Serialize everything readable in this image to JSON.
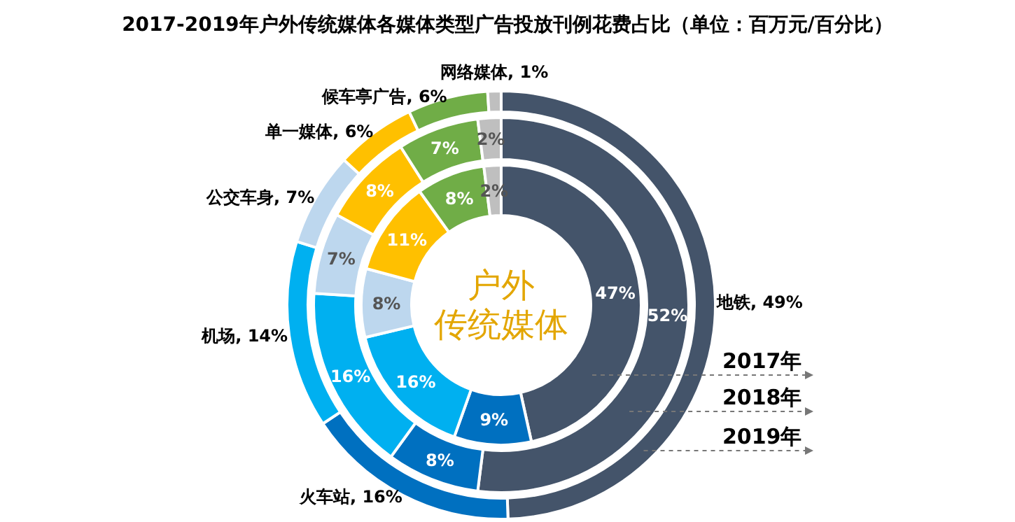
{
  "chart_data": {
    "type": "donut",
    "title": "2017-2019年户外传统媒体各媒体类型广告投放刊例花费占比（单位：百万元/百分比）",
    "categories": [
      "地铁",
      "火车站",
      "机场",
      "公交车身",
      "单一媒体",
      "候车亭广告",
      "网络媒体"
    ],
    "colors": [
      "#44546a",
      "#0070c0",
      "#00b0f0",
      "#bdd7ee",
      "#ffc000",
      "#70ad47",
      "#bfbfbf"
    ],
    "series": [
      {
        "name": "2019年",
        "values": [
          49,
          16,
          14,
          7,
          6,
          6,
          1
        ],
        "value_labels": [
          ", 49%",
          ", 16%",
          ", 14%",
          ", 7%",
          ", 6%",
          ", 6%",
          ", 1%"
        ]
      },
      {
        "name": "2018年",
        "values": [
          52,
          8,
          16,
          7,
          8,
          7,
          2
        ],
        "value_labels": [
          "52%",
          "8%",
          "16%",
          "7%",
          "8%",
          "7%",
          "2%"
        ]
      },
      {
        "name": "2017年",
        "values": [
          47,
          9,
          16,
          8,
          11,
          8,
          2
        ],
        "value_labels": [
          "47%",
          "9%",
          "16%",
          "8%",
          "11%",
          "8%",
          "2%"
        ]
      }
    ],
    "data_labels": true,
    "annotations": [
      "户外",
      "传统媒体"
    ]
  }
}
